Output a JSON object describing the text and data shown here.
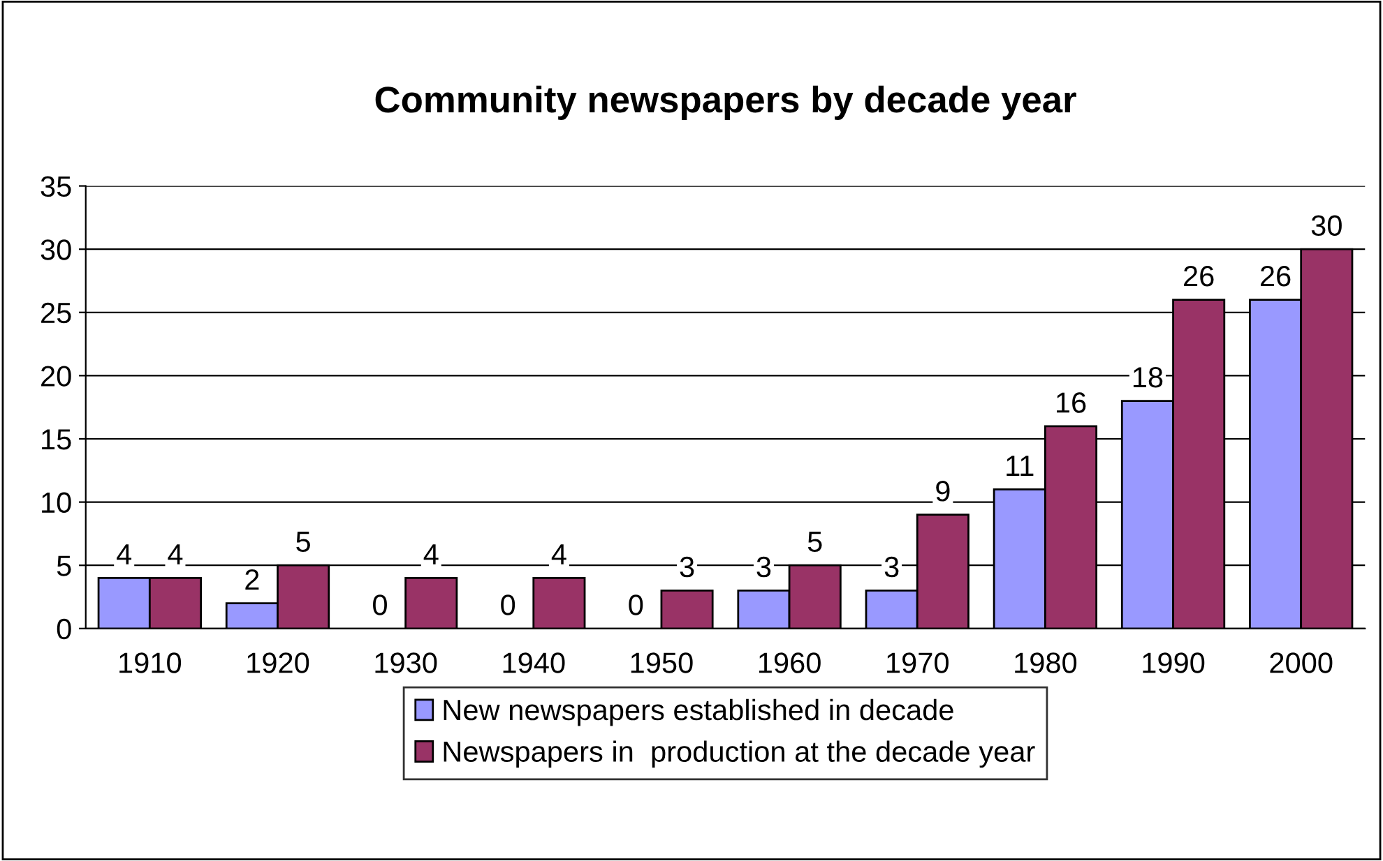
{
  "chart_data": {
    "type": "bar",
    "title": "Community newspapers by decade year",
    "categories": [
      "1910",
      "1920",
      "1930",
      "1940",
      "1950",
      "1960",
      "1970",
      "1980",
      "1990",
      "2000"
    ],
    "series": [
      {
        "name": "New newspapers established in decade",
        "color": "#9999ff",
        "values": [
          4,
          2,
          0,
          0,
          0,
          3,
          3,
          11,
          18,
          26
        ]
      },
      {
        "name": "Newspapers in  production at the decade year",
        "color": "#993366",
        "values": [
          4,
          5,
          4,
          4,
          3,
          5,
          9,
          16,
          26,
          30
        ]
      }
    ],
    "ylim": [
      0,
      35
    ],
    "yticks": [
      0,
      5,
      10,
      15,
      20,
      25,
      30,
      35
    ],
    "grid": "y",
    "legend": "bottom",
    "data_labels": true
  }
}
